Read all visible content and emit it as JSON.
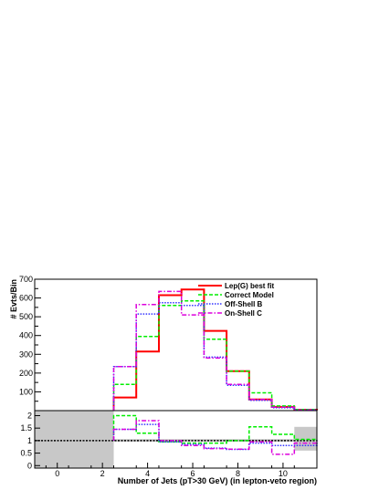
{
  "chart_data": [
    {
      "type": "line",
      "panel": "main",
      "ylabel": "# Evts/Bin",
      "xlabel": "",
      "xlim": [
        -1,
        11.5
      ],
      "ylim": [
        0,
        700
      ],
      "yticks": [
        100,
        200,
        300,
        400,
        500,
        600,
        700
      ],
      "grid": false,
      "legend_position": "top-right",
      "x": [
        3,
        4,
        5,
        6,
        7,
        8,
        9,
        10,
        11
      ],
      "series": [
        {
          "name": "Lep(G) best fit",
          "color": "#ff0000",
          "dash": "",
          "width": 2,
          "values": [
            70,
            315,
            615,
            645,
            425,
            210,
            60,
            20,
            5
          ]
        },
        {
          "name": "Correct Model",
          "color": "#00ee00",
          "dash": "4,2",
          "width": 1.5,
          "values": [
            140,
            395,
            560,
            585,
            380,
            210,
            95,
            25,
            6
          ]
        },
        {
          "name": "Off-Shell B",
          "color": "#3333ff",
          "dash": "1.5,1.5",
          "width": 1.5,
          "values": [
            235,
            515,
            575,
            560,
            285,
            135,
            55,
            15,
            3
          ]
        },
        {
          "name": "On-Shell C",
          "color": "#dd00dd",
          "dash": "5,2,1.5,2",
          "width": 1.5,
          "values": [
            235,
            565,
            635,
            510,
            280,
            140,
            60,
            18,
            4
          ]
        }
      ]
    },
    {
      "type": "line",
      "panel": "ratio",
      "xlabel": "Number of Jets (pT>30 GeV) (in lepton-veto region)",
      "ylabel": "",
      "xlim": [
        -1,
        11.5
      ],
      "ylim": [
        -0.1,
        2.2
      ],
      "xticks": [
        0,
        2,
        4,
        6,
        8,
        10
      ],
      "yticks": [
        0,
        0.5,
        1,
        1.5,
        2
      ],
      "ytick_labels": [
        "0",
        "0.5",
        "1",
        "1.5",
        "2"
      ],
      "reference_line": 1,
      "uncertainty_band": [
        {
          "x_from": -1,
          "x_to": 2.5,
          "low": -0.1,
          "high": 2.2
        },
        {
          "x_from": 2.5,
          "x_to": 10.5,
          "low": 0.96,
          "high": 1.06
        },
        {
          "x_from": 10.5,
          "x_to": 11.5,
          "low": 0.6,
          "high": 1.55
        }
      ],
      "x": [
        3,
        4,
        5,
        6,
        7,
        8,
        9,
        10,
        11
      ],
      "series": [
        {
          "name": "Lep(G) best fit",
          "color": "#ff0000",
          "dash": "",
          "width": 1,
          "values": [
            1,
            1,
            1,
            1,
            1,
            1,
            1,
            1,
            1
          ]
        },
        {
          "name": "Correct Model",
          "color": "#00ee00",
          "dash": "4,2",
          "width": 1.5,
          "values": [
            2.0,
            1.3,
            0.95,
            0.9,
            0.9,
            1.0,
            1.55,
            1.25,
            1.05
          ]
        },
        {
          "name": "Off-Shell B",
          "color": "#3333ff",
          "dash": "1.5,1.5",
          "width": 1.5,
          "values": [
            1.45,
            1.65,
            0.95,
            0.85,
            0.7,
            0.65,
            0.9,
            0.8,
            0.8
          ]
        },
        {
          "name": "On-Shell C",
          "color": "#dd00dd",
          "dash": "5,2,1.5,2",
          "width": 1.5,
          "values": [
            1.45,
            1.8,
            1.0,
            0.8,
            0.68,
            0.66,
            0.95,
            0.45,
            0.9
          ]
        }
      ]
    }
  ]
}
